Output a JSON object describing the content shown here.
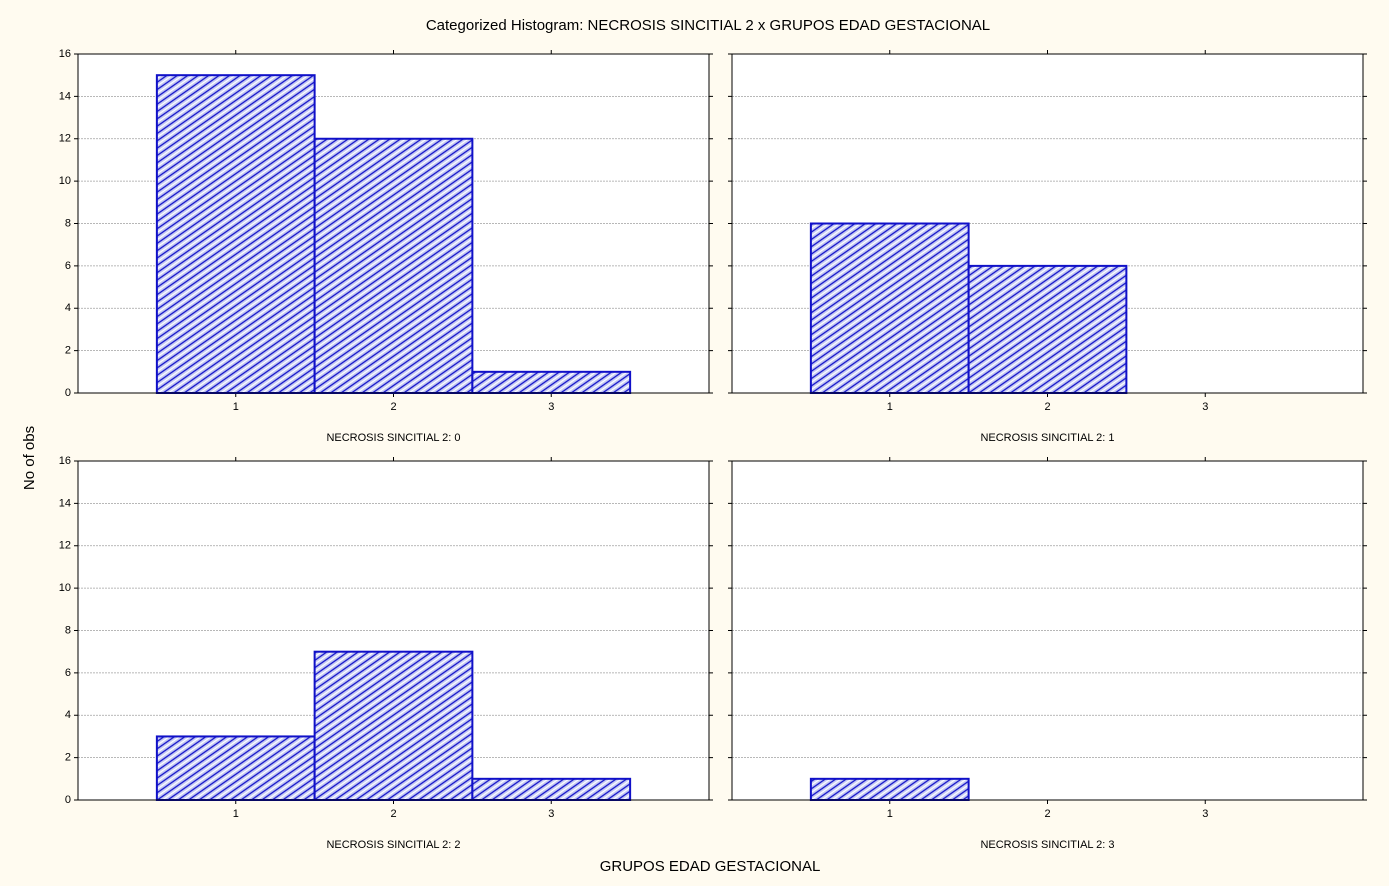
{
  "title": "Categorized Histogram: NECROSIS SINCITIAL 2 x GRUPOS EDAD GESTACIONAL",
  "x_label": "GRUPOS EDAD GESTACIONAL",
  "y_label": "No of obs",
  "chart_data": [
    {
      "type": "histogram",
      "subtitle": "NECROSIS SINCITIAL 2: 0",
      "bins": [
        0.5,
        1.5,
        2.5,
        3.5
      ],
      "values": [
        15,
        12,
        1
      ],
      "color": "#1010c8",
      "xlim": [
        0,
        4
      ],
      "xticks": [
        1,
        2,
        3
      ],
      "ylim": [
        0,
        16
      ],
      "yticks": [
        0,
        2,
        4,
        6,
        8,
        10,
        12,
        14,
        16
      ],
      "grid": true
    },
    {
      "type": "histogram",
      "subtitle": "NECROSIS SINCITIAL 2: 1",
      "bins": [
        0.5,
        1.5,
        2.5,
        3.5
      ],
      "values": [
        8,
        6,
        0
      ],
      "color": "#1010c8",
      "xlim": [
        0,
        4
      ],
      "xticks": [
        1,
        2,
        3
      ],
      "ylim": [
        0,
        16
      ],
      "yticks": [
        0,
        2,
        4,
        6,
        8,
        10,
        12,
        14,
        16
      ],
      "grid": true
    },
    {
      "type": "histogram",
      "subtitle": "NECROSIS SINCITIAL 2: 2",
      "bins": [
        0.5,
        1.5,
        2.5,
        3.5
      ],
      "values": [
        3,
        7,
        1
      ],
      "color": "#1010c8",
      "xlim": [
        0,
        4
      ],
      "xticks": [
        1,
        2,
        3
      ],
      "ylim": [
        0,
        16
      ],
      "yticks": [
        0,
        2,
        4,
        6,
        8,
        10,
        12,
        14,
        16
      ],
      "grid": true
    },
    {
      "type": "histogram",
      "subtitle": "NECROSIS SINCITIAL 2: 3",
      "bins": [
        0.5,
        1.5,
        2.5,
        3.5
      ],
      "values": [
        1,
        0,
        0
      ],
      "color": "#1010c8",
      "xlim": [
        0,
        4
      ],
      "xticks": [
        1,
        2,
        3
      ],
      "ylim": [
        0,
        16
      ],
      "yticks": [
        0,
        2,
        4,
        6,
        8,
        10,
        12,
        14,
        16
      ],
      "grid": true
    }
  ]
}
